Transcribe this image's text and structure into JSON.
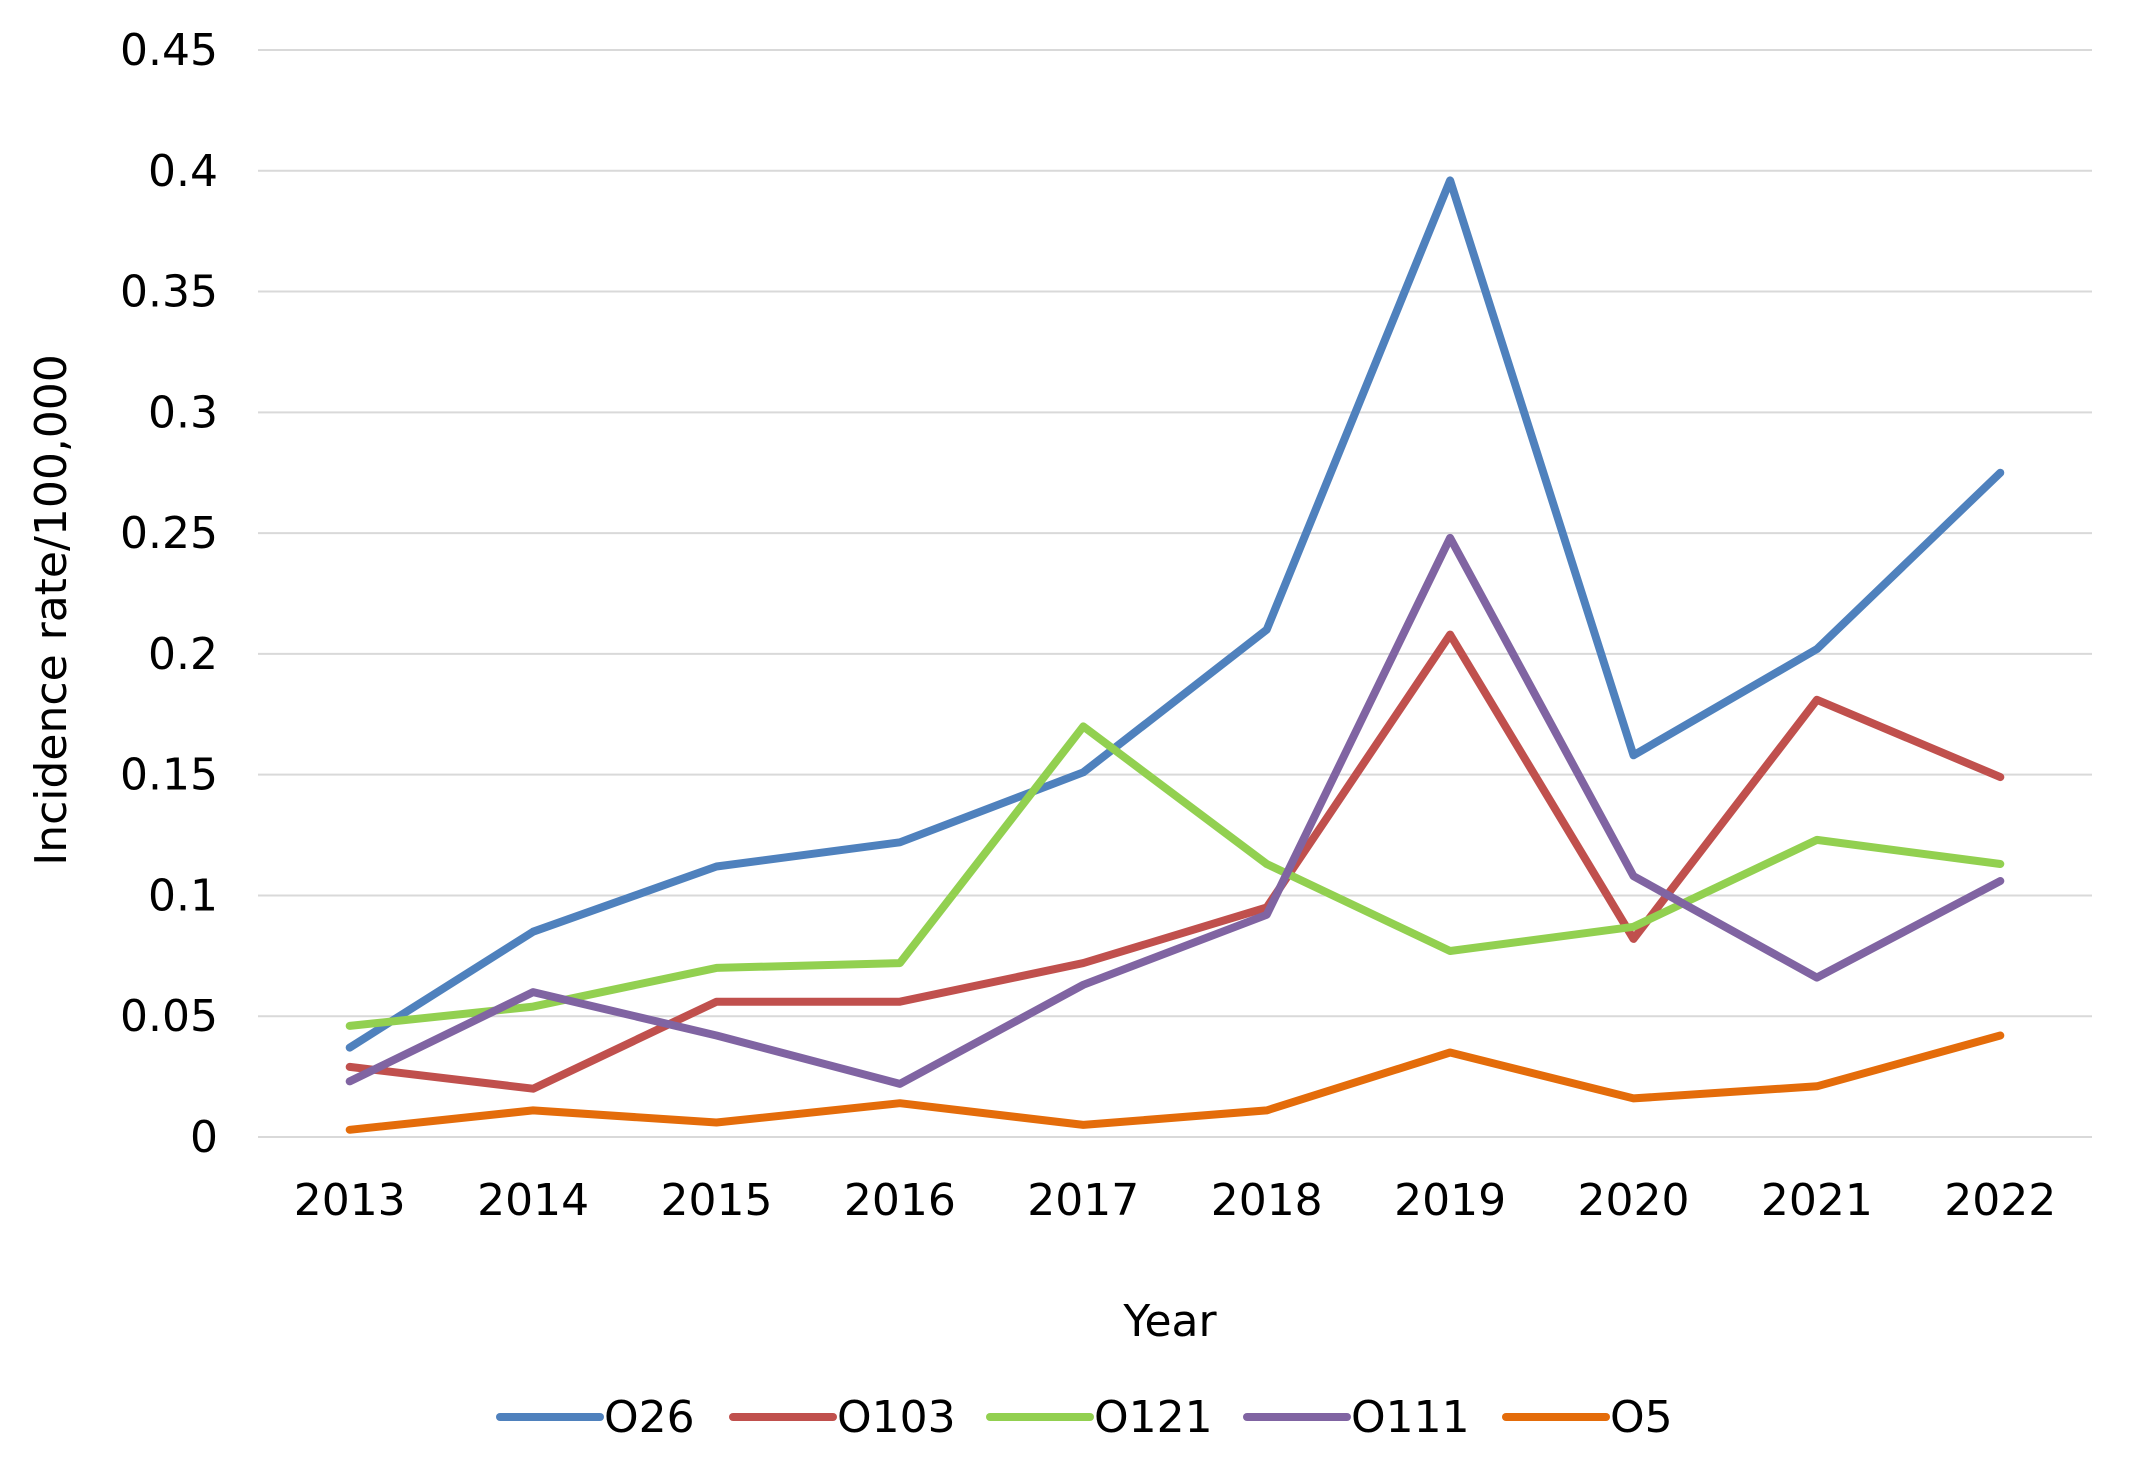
{
  "chart_data": {
    "type": "line",
    "title": "",
    "xlabel": "Year",
    "ylabel": "Incidence rate/100,000",
    "categories": [
      "2013",
      "2014",
      "2015",
      "2016",
      "2017",
      "2018",
      "2019",
      "2020",
      "2021",
      "2022"
    ],
    "ylim": [
      0,
      0.45
    ],
    "yticks": [
      0,
      0.05,
      0.1,
      0.15,
      0.2,
      0.25,
      0.3,
      0.35,
      0.4,
      0.45
    ],
    "ytick_labels": [
      "0",
      "0.05",
      "0.1",
      "0.15",
      "0.2",
      "0.25",
      "0.3",
      "0.35",
      "0.4",
      "0.45"
    ],
    "grid": true,
    "legend_position": "bottom",
    "series": [
      {
        "name": "O26",
        "color": "#4F81BD",
        "values": [
          0.037,
          0.085,
          0.112,
          0.122,
          0.151,
          0.21,
          0.396,
          0.158,
          0.202,
          0.275
        ]
      },
      {
        "name": "O103",
        "color": "#C0504D",
        "values": [
          0.029,
          0.02,
          0.056,
          0.056,
          0.072,
          0.095,
          0.208,
          0.082,
          0.181,
          0.149
        ]
      },
      {
        "name": "O121",
        "color": "#92D050",
        "values": [
          0.046,
          0.054,
          0.07,
          0.072,
          0.17,
          0.113,
          0.077,
          0.087,
          0.123,
          0.113
        ]
      },
      {
        "name": "O111",
        "color": "#8064A2",
        "values": [
          0.023,
          0.06,
          0.042,
          0.022,
          0.063,
          0.092,
          0.248,
          0.108,
          0.066,
          0.106
        ]
      },
      {
        "name": "O5",
        "color": "#E46C0A",
        "values": [
          0.003,
          0.011,
          0.006,
          0.014,
          0.005,
          0.011,
          0.035,
          0.016,
          0.021,
          0.042
        ]
      }
    ]
  }
}
